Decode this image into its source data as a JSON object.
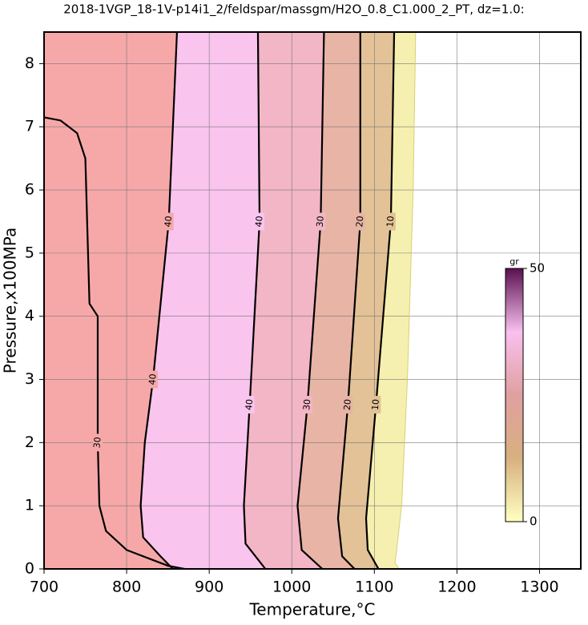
{
  "chart_data": {
    "type": "contour",
    "title": "2018-1VGP_18-1V-p14i1_2/feldspar/massgm/H2O_0.8_C1.000_2_PT, dz=1.0:",
    "xlabel": "Temperature,°C",
    "ylabel": "Pressure,x100MPa",
    "xlim": [
      700,
      1350
    ],
    "ylim": [
      0,
      8.5
    ],
    "xticks": [
      700,
      800,
      900,
      1000,
      1100,
      1200,
      1300
    ],
    "yticks": [
      0,
      1,
      2,
      3,
      4,
      5,
      6,
      7,
      8
    ],
    "grid": true,
    "edge": {
      "color": "#f6f0b0",
      "x": [
        1150,
        1147,
        1140,
        1133,
        1127,
        1125,
        1130
      ],
      "y": [
        8.5,
        6,
        3,
        1,
        0.3,
        0.1,
        0
      ]
    },
    "contours": [
      {
        "level": 10,
        "color": "#e2c296",
        "x": [
          1124,
          1120,
          1102,
          1090,
          1092,
          1105
        ],
        "y": [
          8.5,
          5.5,
          2.6,
          0.8,
          0.3,
          0
        ]
      },
      {
        "level": 20,
        "color": "#e8b4a6",
        "x": [
          1083,
          1083,
          1068,
          1056,
          1061,
          1076
        ],
        "y": [
          8.5,
          5.5,
          2.6,
          0.8,
          0.2,
          0
        ]
      },
      {
        "level": 30,
        "color": "#f2b6c6",
        "x": [
          1039,
          1035,
          1019,
          1007,
          1012,
          1037
        ],
        "y": [
          8.5,
          5.5,
          2.6,
          1,
          0.3,
          0
        ]
      },
      {
        "level": 40,
        "color": "#f9c4ee",
        "x": [
          959,
          961,
          949,
          942,
          944,
          968
        ],
        "y": [
          8.5,
          5.5,
          2.6,
          1,
          0.4,
          0
        ]
      },
      {
        "level": 40,
        "color": "#f6a8a8",
        "x": [
          861,
          851,
          832,
          822,
          817,
          820,
          841,
          856
        ],
        "y": [
          8.5,
          5.5,
          3,
          2,
          1,
          0.5,
          0.2,
          0
        ]
      },
      {
        "level": 30,
        "color": "#f6a8a8",
        "x": [
          700,
          720,
          740,
          750,
          755,
          765,
          765,
          765,
          767,
          775,
          800,
          830,
          850,
          870
        ],
        "y": [
          7.15,
          7.1,
          6.9,
          6.5,
          4.2,
          4.0,
          3.7,
          2,
          1,
          0.6,
          0.3,
          0.15,
          0.05,
          0
        ]
      }
    ],
    "colorbar": {
      "label": "gr",
      "ticks": [
        0,
        50
      ],
      "colors": [
        "#ffffc0",
        "#d8b080",
        "#e0a0a0",
        "#f8c0ee",
        "#5a1050"
      ]
    }
  }
}
